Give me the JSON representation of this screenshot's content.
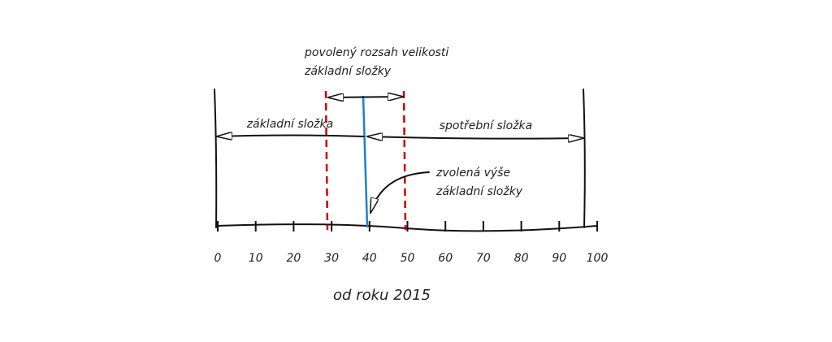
{
  "diagram": {
    "top_label": [
      "povolený rozsah velikosti",
      "základní složky"
    ],
    "left_segment": "základní složka",
    "right_segment": "spotřební složka",
    "pointer_label": [
      "zvolená výše",
      "základní složky"
    ],
    "axis": {
      "ticks": [
        0,
        10,
        20,
        30,
        40,
        50,
        60,
        70,
        80,
        90,
        100
      ]
    },
    "caption": "od roku 2015"
  }
}
